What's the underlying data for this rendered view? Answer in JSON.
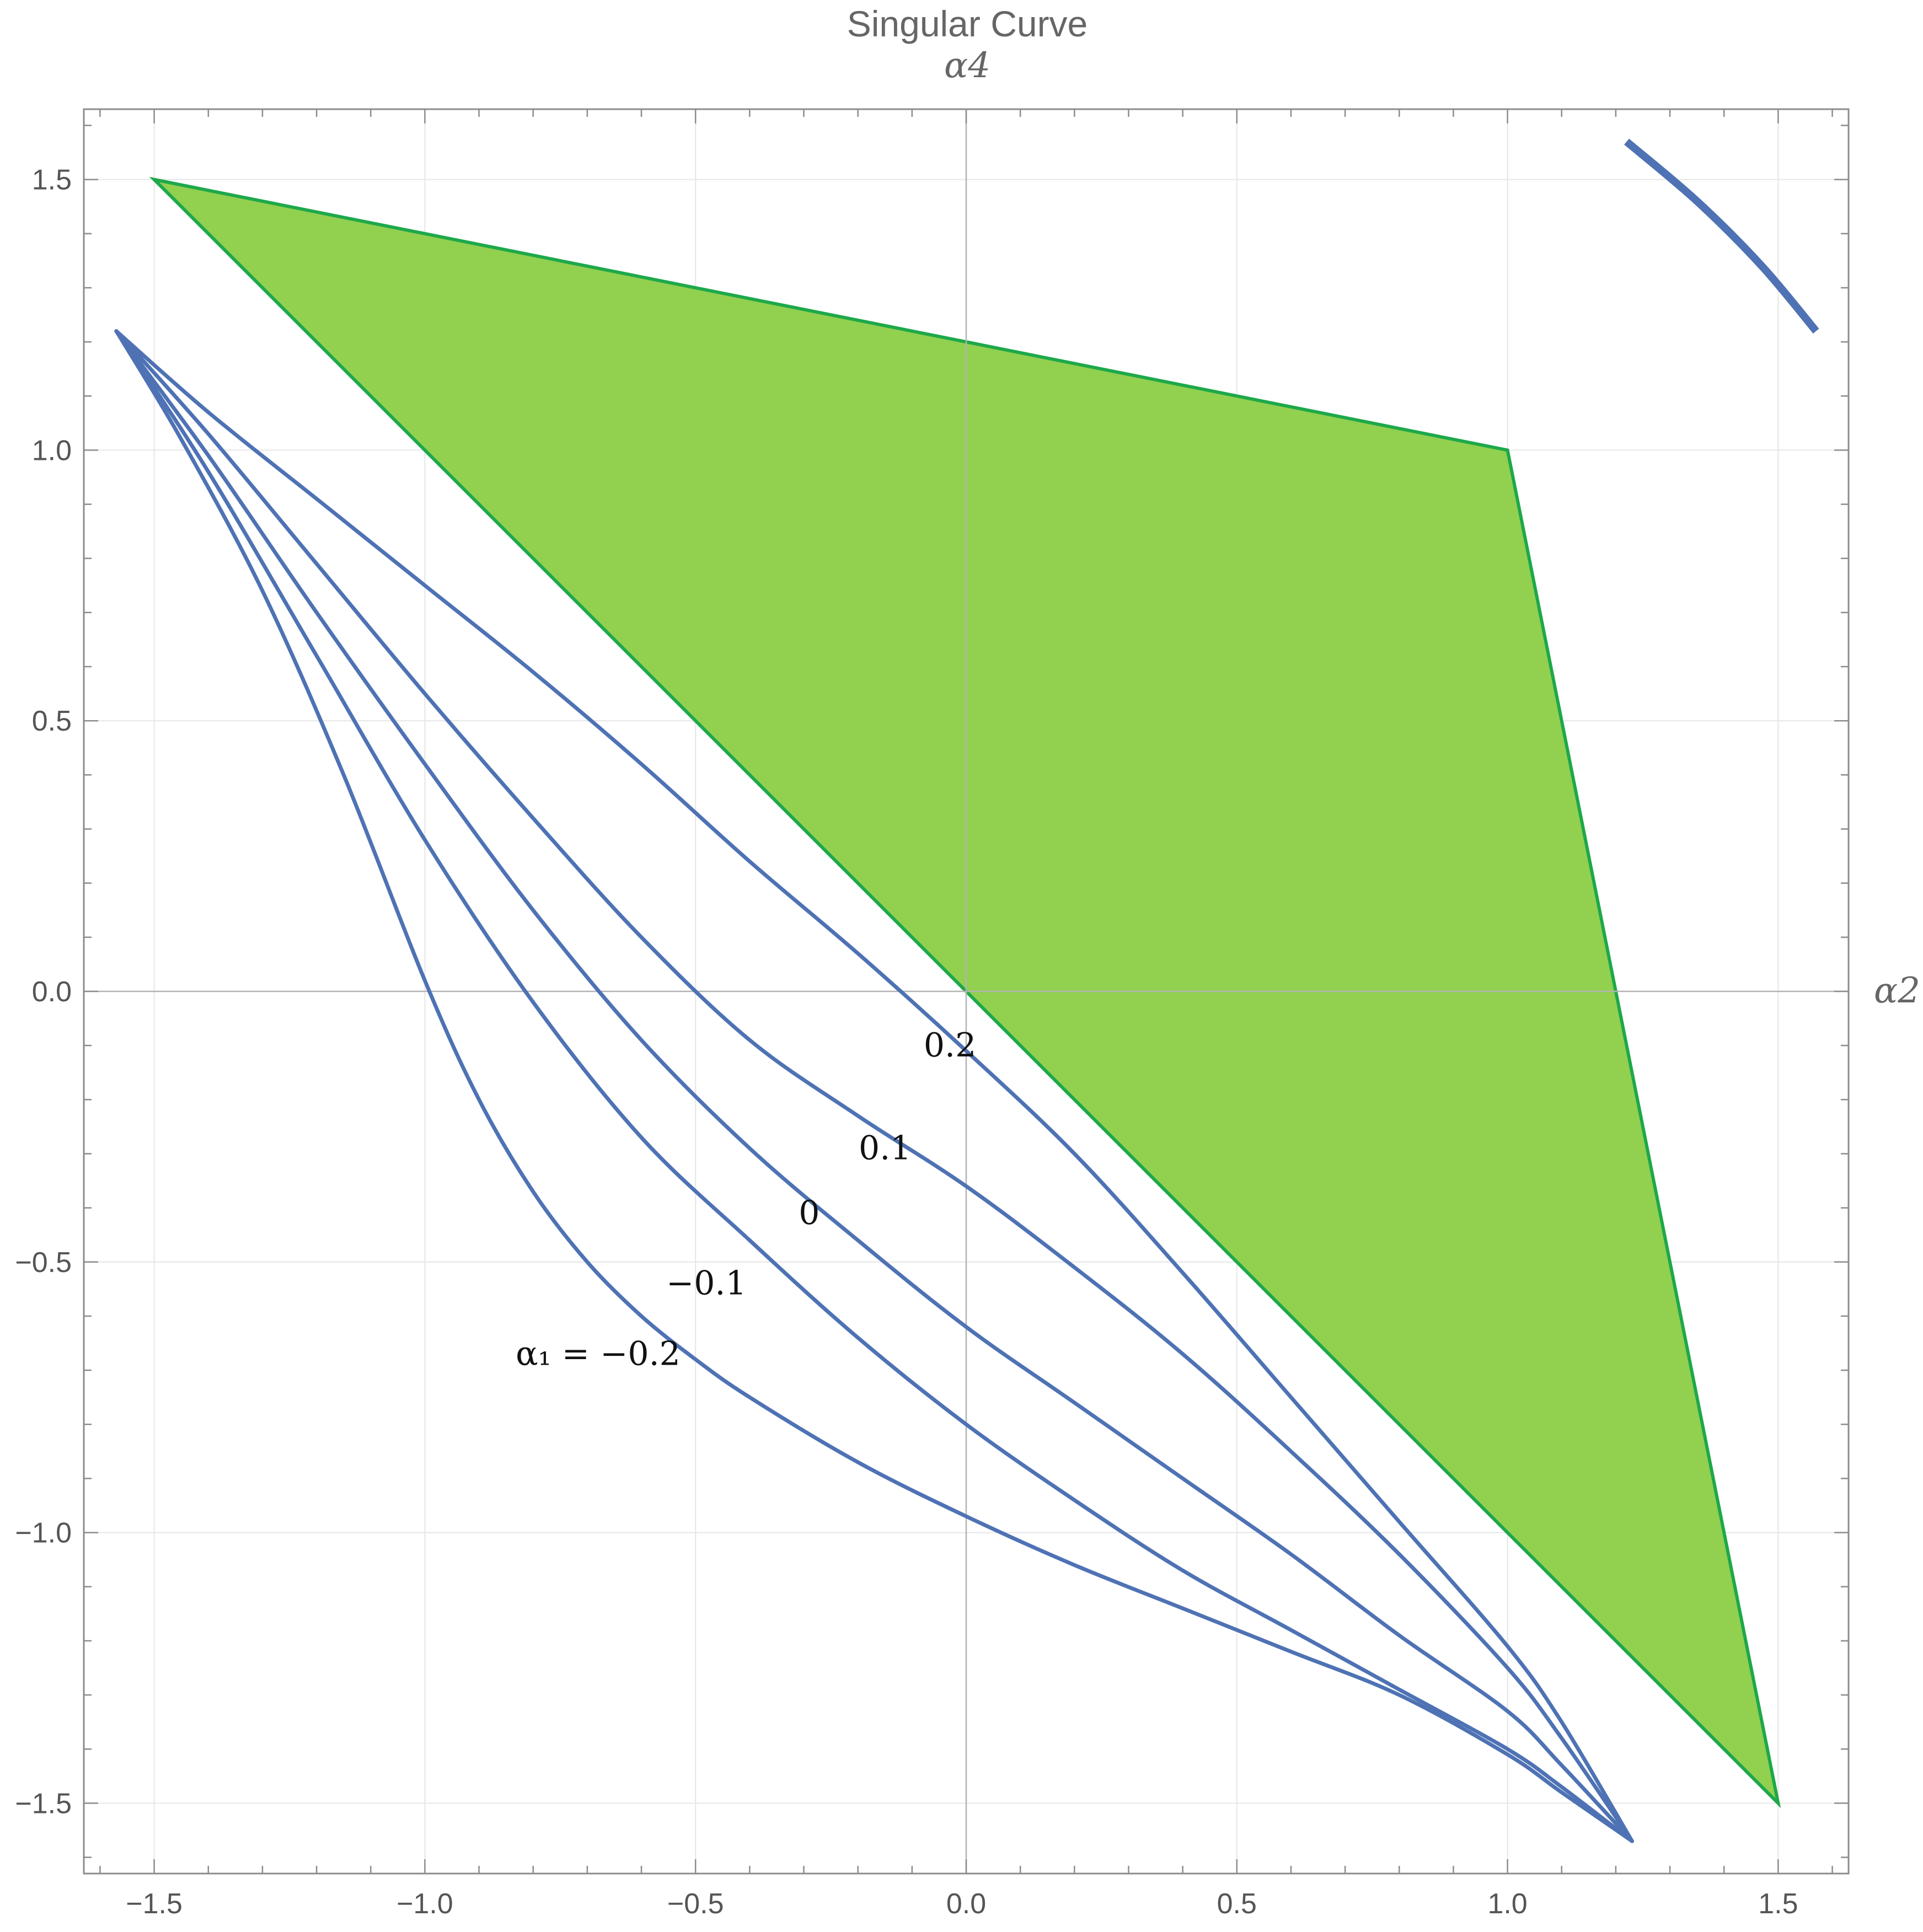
{
  "chart_data": {
    "type": "line",
    "title": "Singular Curve",
    "xlabel": "α2",
    "ylabel": "α4",
    "xlim": [
      -1.63,
      1.63
    ],
    "ylim": [
      -1.63,
      1.63
    ],
    "grid": true,
    "x_ticks": [
      -1.5,
      -1.0,
      -0.5,
      0.0,
      0.5,
      1.0,
      1.5
    ],
    "y_ticks": [
      -1.5,
      -1.0,
      -0.5,
      0.0,
      0.5,
      1.0,
      1.5
    ],
    "x_tick_labels": [
      "−1.5",
      "−1.0",
      "−0.5",
      "0.0",
      "0.5",
      "1.0",
      "1.5"
    ],
    "y_tick_labels": [
      "−1.5",
      "−1.0",
      "−0.5",
      "0.0",
      "0.5",
      "1.0",
      "1.5"
    ],
    "region": {
      "fill": "#92d050",
      "stroke": "#1ea84a",
      "vertices": [
        [
          -1.5,
          1.5
        ],
        [
          1.0,
          1.0
        ],
        [
          1.5,
          -1.5
        ]
      ]
    },
    "series_color": "#4e72b4",
    "series": [
      {
        "alpha1": -0.2,
        "label": "α₁ = −0.2",
        "x": [
          -1.57,
          -1.45,
          -1.3,
          -1.15,
          -1.0,
          -0.9,
          -0.8,
          -0.7,
          -0.6,
          -0.5,
          -0.4,
          -0.2,
          0.0,
          0.2,
          0.4,
          0.6,
          0.8,
          1.0,
          1.1,
          1.23
        ],
        "y": [
          1.22,
          1.02,
          0.74,
          0.4,
          0.02,
          -0.2,
          -0.37,
          -0.5,
          -0.6,
          -0.68,
          -0.75,
          -0.87,
          -0.97,
          -1.06,
          -1.14,
          -1.22,
          -1.3,
          -1.41,
          -1.48,
          -1.57
        ]
      },
      {
        "alpha1": -0.1,
        "label": "−0.1",
        "x": [
          -1.57,
          -1.4,
          -1.2,
          -1.0,
          -0.8,
          -0.6,
          -0.4,
          -0.2,
          0.0,
          0.2,
          0.4,
          0.6,
          0.8,
          1.0,
          1.1,
          1.23
        ],
        "y": [
          1.22,
          0.96,
          0.62,
          0.28,
          -0.02,
          -0.27,
          -0.46,
          -0.64,
          -0.8,
          -0.94,
          -1.07,
          -1.18,
          -1.29,
          -1.4,
          -1.47,
          -1.57
        ]
      },
      {
        "alpha1": 0.0,
        "label": "0",
        "x": [
          -1.57,
          -1.4,
          -1.2,
          -1.0,
          -0.8,
          -0.6,
          -0.4,
          -0.2,
          0.0,
          0.2,
          0.4,
          0.6,
          0.8,
          1.0,
          1.1,
          1.23
        ],
        "y": [
          1.22,
          0.99,
          0.7,
          0.42,
          0.15,
          -0.09,
          -0.29,
          -0.46,
          -0.62,
          -0.76,
          -0.9,
          -1.04,
          -1.19,
          -1.33,
          -1.43,
          -1.57
        ]
      },
      {
        "alpha1": 0.1,
        "label": "0.1",
        "x": [
          -1.57,
          -1.4,
          -1.2,
          -1.0,
          -0.8,
          -0.6,
          -0.4,
          -0.2,
          0.0,
          0.2,
          0.4,
          0.6,
          0.8,
          1.0,
          1.1,
          1.23
        ],
        "y": [
          1.22,
          1.03,
          0.79,
          0.55,
          0.32,
          0.1,
          -0.09,
          -0.23,
          -0.36,
          -0.51,
          -0.67,
          -0.85,
          -1.04,
          -1.25,
          -1.38,
          -1.57
        ]
      },
      {
        "alpha1": 0.2,
        "label": "0.2",
        "x": [
          -1.57,
          -1.4,
          -1.2,
          -1.0,
          -0.8,
          -0.6,
          -0.4,
          -0.2,
          0.0,
          0.2,
          0.4,
          0.6,
          0.8,
          1.0,
          1.1,
          1.23
        ],
        "y": [
          1.22,
          1.07,
          0.91,
          0.75,
          0.59,
          0.42,
          0.24,
          0.07,
          -0.11,
          -0.3,
          -0.52,
          -0.75,
          -0.98,
          -1.21,
          -1.35,
          -1.57
        ]
      }
    ],
    "extra_segment": {
      "x": [
        1.22,
        1.35,
        1.47,
        1.57
      ],
      "y": [
        1.57,
        1.46,
        1.34,
        1.22
      ]
    },
    "curve_labels": [
      {
        "text": "0.2",
        "x": -0.03,
        "y": -0.12
      },
      {
        "text": "0.1",
        "x": -0.15,
        "y": -0.31
      },
      {
        "text": "0",
        "x": -0.29,
        "y": -0.43
      },
      {
        "text": "−0.1",
        "x": -0.48,
        "y": -0.56
      },
      {
        "text": "α₁ = −0.2",
        "x": -0.68,
        "y": -0.69
      }
    ]
  }
}
